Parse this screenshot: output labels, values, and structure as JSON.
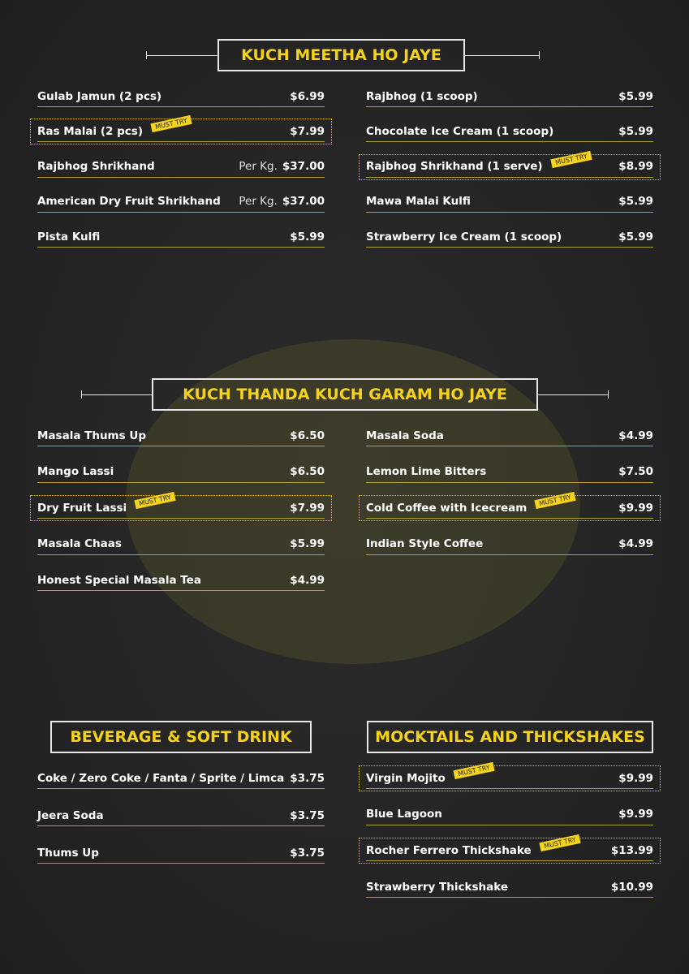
{
  "sections": [
    {
      "title": "KUCH MEETHA HO JAYE",
      "left": [
        {
          "name": "Gulab Jamun (2 pcs)",
          "price": "$6.99"
        },
        {
          "name": "Ras Malai (2 pcs)",
          "price": "$7.99",
          "badge": "MUST TRY"
        },
        {
          "name": "Rajbhog Shrikhand",
          "price": "$37.00",
          "note": "Per Kg."
        },
        {
          "name": "American Dry Fruit Shrikhand",
          "price": "$37.00",
          "note": "Per Kg."
        },
        {
          "name": "Pista Kulfi",
          "price": "$5.99"
        }
      ],
      "right": [
        {
          "name": "Rajbhog (1 scoop)",
          "price": "$5.99"
        },
        {
          "name": "Chocolate Ice Cream (1 scoop)",
          "price": "$5.99"
        },
        {
          "name": "Rajbhog Shrikhand (1 serve)",
          "price": "$8.99",
          "badge": "MUST TRY"
        },
        {
          "name": "Mawa Malai Kulfi",
          "price": "$5.99"
        },
        {
          "name": "Strawberry Ice Cream (1 scoop)",
          "price": "$5.99"
        }
      ]
    },
    {
      "title": "KUCH THANDA KUCH GARAM HO JAYE",
      "left": [
        {
          "name": "Masala Thums Up",
          "price": "$6.50"
        },
        {
          "name": "Mango Lassi",
          "price": "$6.50"
        },
        {
          "name": "Dry Fruit Lassi",
          "price": "$7.99",
          "badge": "MUST TRY"
        },
        {
          "name": "Masala Chaas",
          "price": "$5.99"
        },
        {
          "name": "Honest Special Masala Tea",
          "price": "$4.99"
        }
      ],
      "right": [
        {
          "name": "Masala Soda",
          "price": "$4.99"
        },
        {
          "name": "Lemon Lime Bitters",
          "price": "$7.50"
        },
        {
          "name": "Cold Coffee with Icecream",
          "price": "$9.99",
          "badge": "MUST TRY"
        },
        {
          "name": "Indian Style Coffee",
          "price": "$4.99"
        }
      ]
    },
    {
      "title": "BEVERAGE & SOFT DRINK",
      "left": [
        {
          "name": "Coke / Zero Coke / Fanta / Sprite / Limca",
          "price": "$3.75"
        },
        {
          "name": "Jeera Soda",
          "price": "$3.75"
        },
        {
          "name": "Thums Up",
          "price": "$3.75"
        }
      ]
    },
    {
      "title": "MOCKTAILS AND THICKSHAKES",
      "right": [
        {
          "name": "Virgin Mojito",
          "price": "$9.99",
          "badge": "MUST TRY"
        },
        {
          "name": "Blue Lagoon",
          "price": "$9.99"
        },
        {
          "name": "Rocher Ferrero Thickshake",
          "price": "$13.99",
          "badge": "MUST TRY"
        },
        {
          "name": "Strawberry Thickshake",
          "price": "$10.99"
        }
      ]
    }
  ]
}
